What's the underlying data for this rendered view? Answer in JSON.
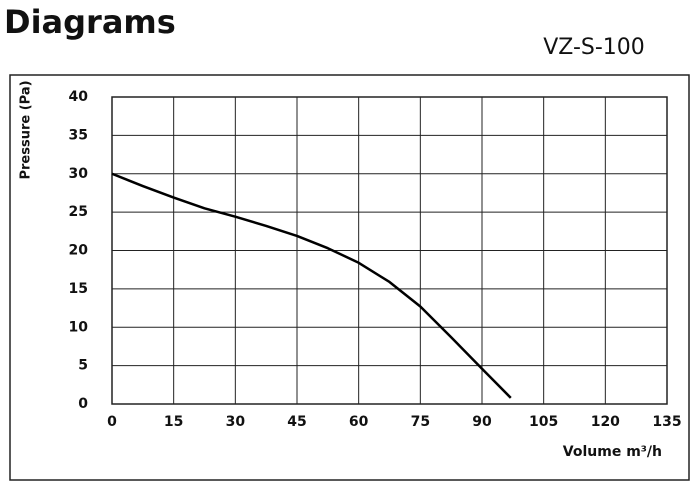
{
  "page_title": "Diagrams",
  "chart_data": {
    "type": "line",
    "title": "VZ-S-100",
    "x_label": "Volume m³/h",
    "y_label": "Pressure (Pa)",
    "series": [
      {
        "name": "VZ-S-100",
        "color": "#000000",
        "x": [
          0,
          7.5,
          15,
          22.5,
          30,
          37.5,
          45,
          52.5,
          60,
          67.5,
          75,
          82.5,
          90,
          97
        ],
        "values": [
          30,
          28.4,
          26.9,
          25.5,
          24.4,
          23.2,
          21.9,
          20.3,
          18.4,
          15.9,
          12.7,
          8.7,
          4.6,
          0.8
        ]
      }
    ],
    "xlim": [
      0,
      135
    ],
    "xticks": [
      0,
      15,
      30,
      45,
      60,
      75,
      90,
      105,
      120,
      135
    ],
    "ylim": [
      0,
      40
    ],
    "yticks": [
      0,
      5,
      10,
      15,
      20,
      25,
      30,
      35,
      40
    ],
    "grid": true
  }
}
